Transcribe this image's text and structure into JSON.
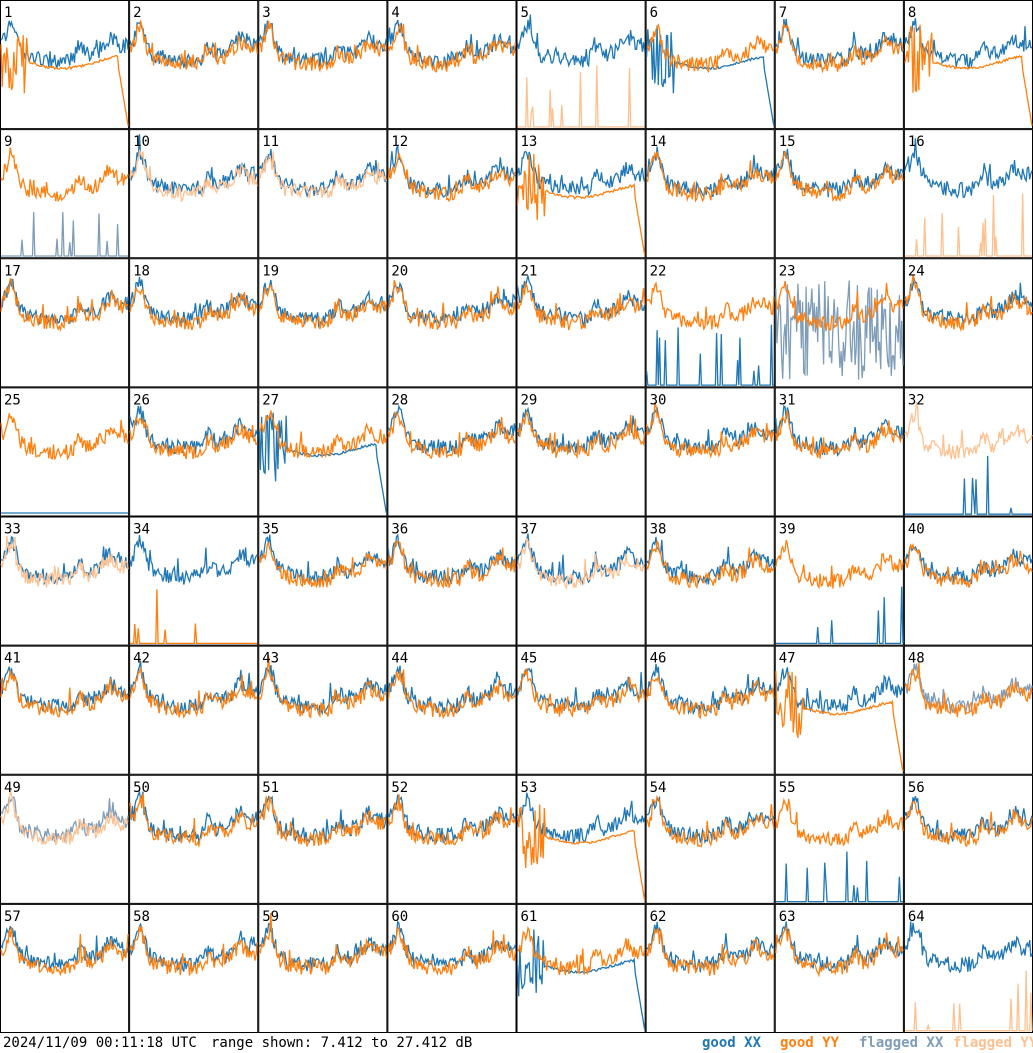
{
  "timestamp": "2024/11/09 00:11:18 UTC",
  "range_text": "range shown: 7.412 to 27.412 dB",
  "legend": {
    "good_xx": "good XX",
    "good_yy": "good YY",
    "flagged_xx": "flagged XX",
    "flagged_yy": "flagged YY"
  },
  "colors": {
    "good_xx": "#1f77b4",
    "good_yy": "#ff7f0e",
    "flagged_xx": "#7f9db8",
    "flagged_yy": "#ffc08f"
  },
  "chart_data": {
    "type": "line",
    "ylabel": "",
    "ylim": [
      7.412,
      27.412
    ],
    "grid_rows": 8,
    "grid_cols": 8,
    "series_kinds": [
      "good XX",
      "good YY",
      "flagged XX",
      "flagged YY"
    ],
    "panels": [
      {
        "label": "1",
        "xx": {
          "status": "good",
          "profile": "normal"
        },
        "yy": {
          "status": "good",
          "profile": "broken"
        }
      },
      {
        "label": "2",
        "xx": {
          "status": "good",
          "profile": "normal"
        },
        "yy": {
          "status": "good",
          "profile": "normal"
        }
      },
      {
        "label": "3",
        "xx": {
          "status": "good",
          "profile": "normal"
        },
        "yy": {
          "status": "good",
          "profile": "normal"
        }
      },
      {
        "label": "4",
        "xx": {
          "status": "good",
          "profile": "normal"
        },
        "yy": {
          "status": "good",
          "profile": "normal"
        }
      },
      {
        "label": "5",
        "xx": {
          "status": "good",
          "profile": "normal"
        },
        "yy": {
          "status": "flagged",
          "profile": "spikes"
        }
      },
      {
        "label": "6",
        "xx": {
          "status": "good",
          "profile": "broken"
        },
        "yy": {
          "status": "good",
          "profile": "normal"
        }
      },
      {
        "label": "7",
        "xx": {
          "status": "good",
          "profile": "normal"
        },
        "yy": {
          "status": "good",
          "profile": "normal"
        }
      },
      {
        "label": "8",
        "xx": {
          "status": "good",
          "profile": "normal"
        },
        "yy": {
          "status": "good",
          "profile": "broken"
        }
      },
      {
        "label": "9",
        "xx": {
          "status": "flagged",
          "profile": "spikes"
        },
        "yy": {
          "status": "good",
          "profile": "normal"
        }
      },
      {
        "label": "10",
        "xx": {
          "status": "good",
          "profile": "normal"
        },
        "yy": {
          "status": "flagged",
          "profile": "normal"
        }
      },
      {
        "label": "11",
        "xx": {
          "status": "good",
          "profile": "normal"
        },
        "yy": {
          "status": "flagged",
          "profile": "normal"
        }
      },
      {
        "label": "12",
        "xx": {
          "status": "good",
          "profile": "normal"
        },
        "yy": {
          "status": "good",
          "profile": "normal"
        }
      },
      {
        "label": "13",
        "xx": {
          "status": "good",
          "profile": "normal"
        },
        "yy": {
          "status": "good",
          "profile": "broken"
        }
      },
      {
        "label": "14",
        "xx": {
          "status": "good",
          "profile": "normal"
        },
        "yy": {
          "status": "good",
          "profile": "normal"
        }
      },
      {
        "label": "15",
        "xx": {
          "status": "good",
          "profile": "normal"
        },
        "yy": {
          "status": "good",
          "profile": "normal"
        }
      },
      {
        "label": "16",
        "xx": {
          "status": "good",
          "profile": "normal"
        },
        "yy": {
          "status": "flagged",
          "profile": "spikes"
        }
      },
      {
        "label": "17",
        "xx": {
          "status": "good",
          "profile": "normal"
        },
        "yy": {
          "status": "good",
          "profile": "normal"
        }
      },
      {
        "label": "18",
        "xx": {
          "status": "good",
          "profile": "normal"
        },
        "yy": {
          "status": "good",
          "profile": "normal"
        }
      },
      {
        "label": "19",
        "xx": {
          "status": "good",
          "profile": "normal"
        },
        "yy": {
          "status": "good",
          "profile": "normal"
        }
      },
      {
        "label": "20",
        "xx": {
          "status": "good",
          "profile": "normal"
        },
        "yy": {
          "status": "good",
          "profile": "normal"
        }
      },
      {
        "label": "21",
        "xx": {
          "status": "good",
          "profile": "normal"
        },
        "yy": {
          "status": "good",
          "profile": "normal"
        }
      },
      {
        "label": "22",
        "xx": {
          "status": "good",
          "profile": "spikes"
        },
        "yy": {
          "status": "good",
          "profile": "normal"
        }
      },
      {
        "label": "23",
        "xx": {
          "status": "flagged",
          "profile": "noisy"
        },
        "yy": {
          "status": "good",
          "profile": "normal"
        }
      },
      {
        "label": "24",
        "xx": {
          "status": "good",
          "profile": "normal"
        },
        "yy": {
          "status": "good",
          "profile": "normal"
        }
      },
      {
        "label": "25",
        "xx": {
          "status": "good",
          "profile": "flat"
        },
        "yy": {
          "status": "good",
          "profile": "normal"
        }
      },
      {
        "label": "26",
        "xx": {
          "status": "good",
          "profile": "normal"
        },
        "yy": {
          "status": "good",
          "profile": "normal"
        }
      },
      {
        "label": "27",
        "xx": {
          "status": "good",
          "profile": "broken"
        },
        "yy": {
          "status": "good",
          "profile": "normal"
        }
      },
      {
        "label": "28",
        "xx": {
          "status": "good",
          "profile": "normal"
        },
        "yy": {
          "status": "good",
          "profile": "normal"
        }
      },
      {
        "label": "29",
        "xx": {
          "status": "good",
          "profile": "normal"
        },
        "yy": {
          "status": "good",
          "profile": "normal"
        }
      },
      {
        "label": "30",
        "xx": {
          "status": "good",
          "profile": "normal"
        },
        "yy": {
          "status": "good",
          "profile": "normal"
        }
      },
      {
        "label": "31",
        "xx": {
          "status": "good",
          "profile": "normal"
        },
        "yy": {
          "status": "good",
          "profile": "normal"
        }
      },
      {
        "label": "32",
        "xx": {
          "status": "good",
          "profile": "spikes"
        },
        "yy": {
          "status": "flagged",
          "profile": "normal"
        }
      },
      {
        "label": "33",
        "xx": {
          "status": "good",
          "profile": "normal"
        },
        "yy": {
          "status": "flagged",
          "profile": "normal"
        }
      },
      {
        "label": "34",
        "xx": {
          "status": "good",
          "profile": "normal"
        },
        "yy": {
          "status": "good",
          "profile": "spikes"
        }
      },
      {
        "label": "35",
        "xx": {
          "status": "good",
          "profile": "normal"
        },
        "yy": {
          "status": "good",
          "profile": "normal"
        }
      },
      {
        "label": "36",
        "xx": {
          "status": "good",
          "profile": "normal"
        },
        "yy": {
          "status": "good",
          "profile": "normal"
        }
      },
      {
        "label": "37",
        "xx": {
          "status": "good",
          "profile": "normal"
        },
        "yy": {
          "status": "flagged",
          "profile": "normal"
        }
      },
      {
        "label": "38",
        "xx": {
          "status": "good",
          "profile": "normal"
        },
        "yy": {
          "status": "good",
          "profile": "normal"
        }
      },
      {
        "label": "39",
        "xx": {
          "status": "good",
          "profile": "spikes"
        },
        "yy": {
          "status": "good",
          "profile": "normal"
        }
      },
      {
        "label": "40",
        "xx": {
          "status": "good",
          "profile": "normal"
        },
        "yy": {
          "status": "good",
          "profile": "normal"
        }
      },
      {
        "label": "41",
        "xx": {
          "status": "good",
          "profile": "normal"
        },
        "yy": {
          "status": "good",
          "profile": "normal"
        }
      },
      {
        "label": "42",
        "xx": {
          "status": "good",
          "profile": "normal"
        },
        "yy": {
          "status": "good",
          "profile": "normal"
        }
      },
      {
        "label": "43",
        "xx": {
          "status": "good",
          "profile": "normal"
        },
        "yy": {
          "status": "good",
          "profile": "normal"
        }
      },
      {
        "label": "44",
        "xx": {
          "status": "good",
          "profile": "normal"
        },
        "yy": {
          "status": "good",
          "profile": "normal"
        }
      },
      {
        "label": "45",
        "xx": {
          "status": "good",
          "profile": "normal"
        },
        "yy": {
          "status": "good",
          "profile": "normal"
        }
      },
      {
        "label": "46",
        "xx": {
          "status": "good",
          "profile": "normal"
        },
        "yy": {
          "status": "good",
          "profile": "normal"
        }
      },
      {
        "label": "47",
        "xx": {
          "status": "good",
          "profile": "normal"
        },
        "yy": {
          "status": "good",
          "profile": "broken"
        }
      },
      {
        "label": "48",
        "xx": {
          "status": "flagged",
          "profile": "normal"
        },
        "yy": {
          "status": "good",
          "profile": "normal"
        }
      },
      {
        "label": "49",
        "xx": {
          "status": "flagged",
          "profile": "normal"
        },
        "yy": {
          "status": "flagged",
          "profile": "normal"
        }
      },
      {
        "label": "50",
        "xx": {
          "status": "good",
          "profile": "normal"
        },
        "yy": {
          "status": "good",
          "profile": "normal"
        }
      },
      {
        "label": "51",
        "xx": {
          "status": "good",
          "profile": "normal"
        },
        "yy": {
          "status": "good",
          "profile": "normal"
        }
      },
      {
        "label": "52",
        "xx": {
          "status": "good",
          "profile": "normal"
        },
        "yy": {
          "status": "good",
          "profile": "normal"
        }
      },
      {
        "label": "53",
        "xx": {
          "status": "good",
          "profile": "normal"
        },
        "yy": {
          "status": "good",
          "profile": "broken"
        }
      },
      {
        "label": "54",
        "xx": {
          "status": "good",
          "profile": "normal"
        },
        "yy": {
          "status": "good",
          "profile": "normal"
        }
      },
      {
        "label": "55",
        "xx": {
          "status": "good",
          "profile": "spikes"
        },
        "yy": {
          "status": "good",
          "profile": "normal"
        }
      },
      {
        "label": "56",
        "xx": {
          "status": "good",
          "profile": "normal"
        },
        "yy": {
          "status": "good",
          "profile": "normal"
        }
      },
      {
        "label": "57",
        "xx": {
          "status": "good",
          "profile": "normal"
        },
        "yy": {
          "status": "good",
          "profile": "normal"
        }
      },
      {
        "label": "58",
        "xx": {
          "status": "good",
          "profile": "normal"
        },
        "yy": {
          "status": "good",
          "profile": "normal"
        }
      },
      {
        "label": "59",
        "xx": {
          "status": "good",
          "profile": "normal"
        },
        "yy": {
          "status": "good",
          "profile": "normal"
        }
      },
      {
        "label": "60",
        "xx": {
          "status": "good",
          "profile": "normal"
        },
        "yy": {
          "status": "good",
          "profile": "normal"
        }
      },
      {
        "label": "61",
        "xx": {
          "status": "good",
          "profile": "broken"
        },
        "yy": {
          "status": "good",
          "profile": "normal"
        }
      },
      {
        "label": "62",
        "xx": {
          "status": "good",
          "profile": "normal"
        },
        "yy": {
          "status": "good",
          "profile": "normal"
        }
      },
      {
        "label": "63",
        "xx": {
          "status": "good",
          "profile": "normal"
        },
        "yy": {
          "status": "good",
          "profile": "normal"
        }
      },
      {
        "label": "64",
        "xx": {
          "status": "good",
          "profile": "normal"
        },
        "yy": {
          "status": "flagged",
          "profile": "spikes"
        }
      }
    ]
  }
}
